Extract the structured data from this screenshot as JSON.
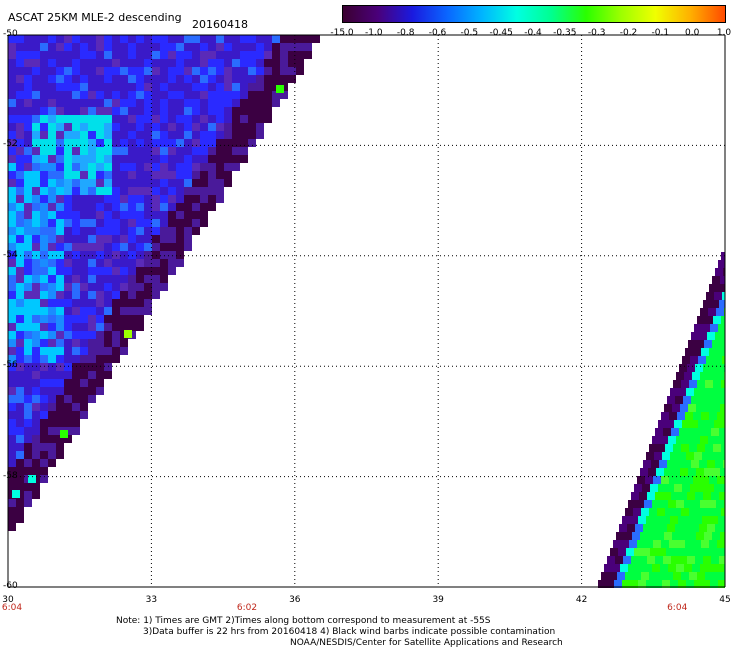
{
  "header": {
    "title": "ASCAT 25KM MLE-2 descending",
    "date": "20160418"
  },
  "colorbar": {
    "labels": [
      "-15.0",
      "-1.0",
      "-0.8",
      "-0.6",
      "-0.5",
      "-0.45",
      "-0.4",
      "-0.35",
      "-0.3",
      "-0.2",
      "-0.1",
      "0.0",
      "1.0"
    ],
    "colors": [
      "#3b0030",
      "#4a007a",
      "#1a1adf",
      "#0a66ff",
      "#00b4ff",
      "#00ffe2",
      "#00ff90",
      "#2aff00",
      "#9cff00",
      "#f0ff00",
      "#ffb000",
      "#ff4a00"
    ]
  },
  "axes": {
    "lat_labels": [
      "-50",
      "-52",
      "-54",
      "-56",
      "-58",
      "-60"
    ],
    "lon_labels": [
      "30",
      "33",
      "36",
      "39",
      "42",
      "45"
    ],
    "time_labels": [
      {
        "lon": 30,
        "text": "6:04"
      },
      {
        "lon": 35,
        "text": "6:02"
      },
      {
        "lon": 44,
        "text": "6:04"
      }
    ]
  },
  "notes": {
    "line1": "Note: 1) Times are GMT 2)Times along bottom correspond to measurement at -55S",
    "line2": "3)Data buffer is 22 hrs from 20160418 4) Black wind barbs indicate possible contamination",
    "line3": "NOAA/NESDIS/Center for Satellite Applications and Research"
  }
}
